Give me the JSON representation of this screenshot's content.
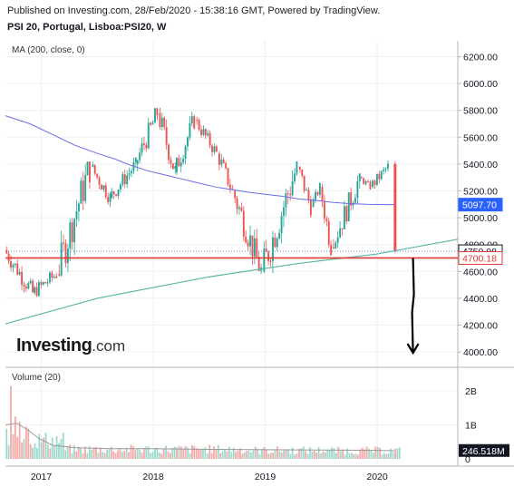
{
  "header": {
    "published": "Published on Investing.com, 28/Feb/2020 - 15:38:16 GMT, Powered by TradingView.",
    "symbol": "PSI 20, Portugal, Lisboa:PSI20, W",
    "ma_label": "MA (200, close, 0)",
    "volume_label": "Volume (20)",
    "logo_main": "Investing",
    "logo_suffix": ".com"
  },
  "colors": {
    "up": "#26a69a",
    "down": "#ef5350",
    "up_vol": "#9fd9cc",
    "down_vol": "#f4aaa8",
    "ma": "#6b6be8",
    "trendline": "#5cb8a0",
    "support": "#e53935",
    "dotted": "#6b8fd6",
    "ma_badge": "#2962ff",
    "arrow": "#000000",
    "vol_ma": "#999999"
  },
  "chart_data": [
    {
      "type": "candlestick",
      "title": "PSI 20, Portugal, Lisboa:PSI20, W",
      "y_ticks": [
        "6200.00",
        "6000.00",
        "5800.00",
        "5600.00",
        "5400.00",
        "5200.00",
        "5000.00",
        "4800.00",
        "4600.00",
        "4400.00",
        "4200.00",
        "4000.00"
      ],
      "ylim": [
        3900,
        6300
      ],
      "x_ticks": [
        "2017",
        "2018",
        "2019",
        "2020"
      ],
      "xlim": [
        2016.68,
        2020.72
      ],
      "grid": true,
      "price_labels": [
        {
          "label": "5097.70",
          "value": 5097.7,
          "role": "ma"
        },
        {
          "label": "4750.08",
          "value": 4750.08,
          "role": "last"
        },
        {
          "label": "4700.18",
          "value": 4700.18,
          "role": "support"
        }
      ],
      "ma_200": [
        [
          2016.68,
          5760
        ],
        [
          2016.9,
          5700
        ],
        [
          2017.1,
          5620
        ],
        [
          2017.3,
          5540
        ],
        [
          2017.5,
          5480
        ],
        [
          2017.65,
          5440
        ],
        [
          2017.8,
          5390
        ],
        [
          2017.95,
          5350
        ],
        [
          2018.1,
          5320
        ],
        [
          2018.25,
          5290
        ],
        [
          2018.4,
          5260
        ],
        [
          2018.55,
          5230
        ],
        [
          2018.7,
          5210
        ],
        [
          2018.85,
          5190
        ],
        [
          2019.0,
          5175
        ],
        [
          2019.15,
          5160
        ],
        [
          2019.3,
          5140
        ],
        [
          2019.45,
          5130
        ],
        [
          2019.6,
          5115
        ],
        [
          2019.75,
          5105
        ],
        [
          2019.9,
          5100
        ],
        [
          2020.05,
          5098
        ],
        [
          2020.15,
          5097.7
        ]
      ],
      "trendline": [
        [
          2016.68,
          4210
        ],
        [
          2017.5,
          4400
        ],
        [
          2018.5,
          4560
        ],
        [
          2019.3,
          4660
        ],
        [
          2020.0,
          4730
        ],
        [
          2020.72,
          4840
        ]
      ],
      "support_level": 4700.18,
      "last_price_level": 4750.08,
      "arrow": {
        "x": 2020.32,
        "from": 4700,
        "to": 4000
      },
      "candles_by_segment": [
        {
          "from": 2016.68,
          "to": 2016.93,
          "open": 4760,
          "close": 4440,
          "lo": 4380,
          "hi": 4800
        },
        {
          "from": 2016.93,
          "to": 2017.15,
          "open": 4440,
          "close": 4580,
          "lo": 4360,
          "hi": 4700
        },
        {
          "from": 2017.15,
          "to": 2017.45,
          "open": 4580,
          "close": 5380,
          "lo": 4560,
          "hi": 5420
        },
        {
          "from": 2017.45,
          "to": 2017.62,
          "open": 5380,
          "close": 5150,
          "lo": 5050,
          "hi": 5420
        },
        {
          "from": 2017.62,
          "to": 2017.85,
          "open": 5150,
          "close": 5400,
          "lo": 5080,
          "hi": 5450
        },
        {
          "from": 2017.85,
          "to": 2018.05,
          "open": 5400,
          "close": 5780,
          "lo": 5320,
          "hi": 5820
        },
        {
          "from": 2018.05,
          "to": 2018.2,
          "open": 5780,
          "close": 5340,
          "lo": 5250,
          "hi": 5820
        },
        {
          "from": 2018.2,
          "to": 2018.38,
          "open": 5340,
          "close": 5730,
          "lo": 5300,
          "hi": 5790
        },
        {
          "from": 2018.38,
          "to": 2018.58,
          "open": 5730,
          "close": 5480,
          "lo": 5420,
          "hi": 5760
        },
        {
          "from": 2018.58,
          "to": 2018.72,
          "open": 5480,
          "close": 5200,
          "lo": 5120,
          "hi": 5520
        },
        {
          "from": 2018.72,
          "to": 2018.98,
          "open": 5200,
          "close": 4600,
          "lo": 4550,
          "hi": 5230
        },
        {
          "from": 2018.98,
          "to": 2019.3,
          "open": 4600,
          "close": 5380,
          "lo": 4580,
          "hi": 5420
        },
        {
          "from": 2019.3,
          "to": 2019.42,
          "open": 5380,
          "close": 5080,
          "lo": 5000,
          "hi": 5400
        },
        {
          "from": 2019.42,
          "to": 2019.5,
          "open": 5080,
          "close": 5230,
          "lo": 5020,
          "hi": 5260
        },
        {
          "from": 2019.5,
          "to": 2019.6,
          "open": 5230,
          "close": 4780,
          "lo": 4720,
          "hi": 5260
        },
        {
          "from": 2019.6,
          "to": 2019.85,
          "open": 4780,
          "close": 5300,
          "lo": 4770,
          "hi": 5330
        },
        {
          "from": 2019.85,
          "to": 2019.95,
          "open": 5300,
          "close": 5230,
          "lo": 5180,
          "hi": 5340
        },
        {
          "from": 2019.95,
          "to": 2020.1,
          "open": 5230,
          "close": 5380,
          "lo": 5180,
          "hi": 5460
        }
      ],
      "final_candle": {
        "x": 2020.16,
        "open": 5400,
        "close": 4750.08,
        "hi": 5420,
        "lo": 4740
      }
    },
    {
      "type": "bar",
      "title": "Volume (20)",
      "y_ticks": [
        "2B",
        "1B",
        "0"
      ],
      "ylim": [
        0,
        2.35
      ],
      "unit": "B",
      "last_value_label": "246.518M",
      "last_value": 0.2465,
      "volume_by_segment": [
        {
          "from": 2016.68,
          "to": 2016.9,
          "level": 0.75
        },
        {
          "from": 2016.9,
          "to": 2017.2,
          "level": 0.55
        },
        {
          "from": 2017.2,
          "to": 2018.8,
          "level": 0.28
        },
        {
          "from": 2018.8,
          "to": 2019.6,
          "level": 0.25
        },
        {
          "from": 2019.6,
          "to": 2020.2,
          "level": 0.24
        }
      ],
      "volume_spikes": [
        {
          "x": 2016.72,
          "value": 2.15
        },
        {
          "x": 2016.76,
          "value": 1.25
        },
        {
          "x": 2016.8,
          "value": 1.1
        },
        {
          "x": 2016.85,
          "value": 0.95
        }
      ],
      "vol_ma": [
        [
          2016.68,
          1.0
        ],
        [
          2016.78,
          1.05
        ],
        [
          2016.88,
          0.85
        ],
        [
          2016.98,
          0.6
        ],
        [
          2017.1,
          0.4
        ],
        [
          2017.3,
          0.33
        ],
        [
          2017.6,
          0.3
        ],
        [
          2018.0,
          0.3
        ],
        [
          2018.5,
          0.28
        ],
        [
          2019.0,
          0.27
        ],
        [
          2019.5,
          0.26
        ],
        [
          2020.0,
          0.25
        ],
        [
          2020.15,
          0.24
        ]
      ]
    }
  ]
}
